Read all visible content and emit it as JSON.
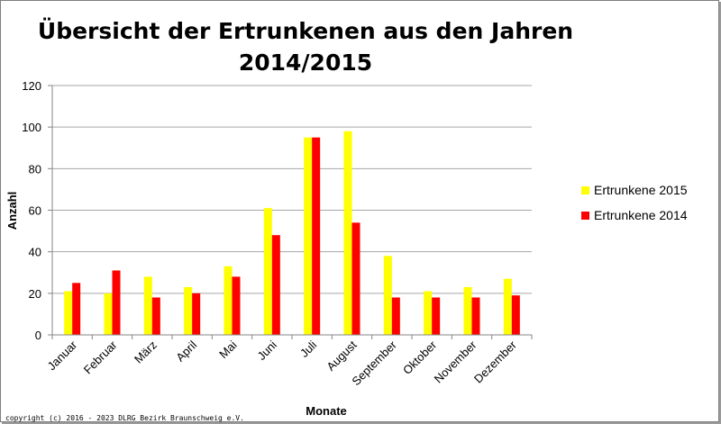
{
  "chart_data": {
    "type": "bar",
    "title_line1": "Übersicht der Ertrunkenen aus den Jahren",
    "title_line2": "2014/2015",
    "xlabel": "Monate",
    "ylabel": "Anzahl",
    "ylim": [
      0,
      120
    ],
    "yticks": [
      0,
      20,
      40,
      60,
      80,
      100,
      120
    ],
    "grid": true,
    "legend_position": "right",
    "categories": [
      "Januar",
      "Februar",
      "März",
      "April",
      "Mai",
      "Juni",
      "Juli",
      "August",
      "September",
      "Oktober",
      "November",
      "Dezember"
    ],
    "series": [
      {
        "name": "Ertrunkene 2015",
        "color": "#ffff00",
        "values": [
          21,
          20,
          28,
          23,
          33,
          61,
          95,
          98,
          38,
          21,
          23,
          27
        ]
      },
      {
        "name": "Ertrunkene 2014",
        "color": "#ff0000",
        "values": [
          25,
          31,
          18,
          20,
          28,
          48,
          95,
          54,
          18,
          18,
          18,
          19
        ]
      }
    ]
  },
  "footer": {
    "copyright": "copyright (c) 2016 - 2023 DLRG Bezirk Braunschweig e.V."
  }
}
